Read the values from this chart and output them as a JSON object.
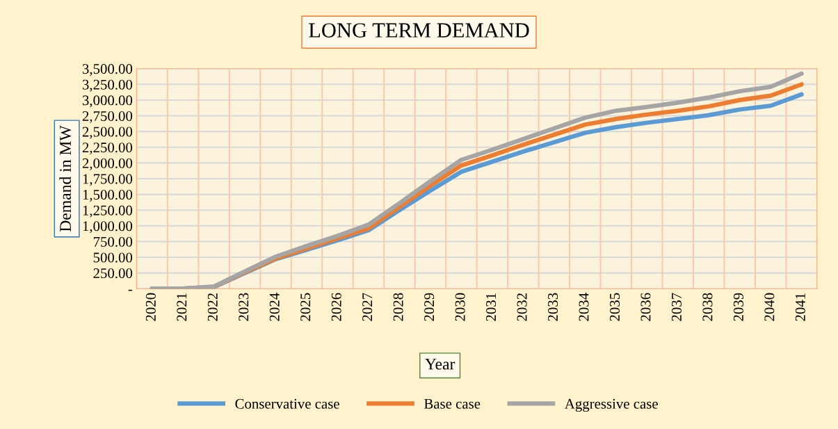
{
  "chart_data": {
    "type": "line",
    "title": "LONG TERM DEMAND",
    "xlabel": "Year",
    "ylabel": "Demand in MW",
    "categories": [
      "2020",
      "2021",
      "2022",
      "2023",
      "2024",
      "2025",
      "2026",
      "2027",
      "2028",
      "2029",
      "2030",
      "2031",
      "2032",
      "2033",
      "2034",
      "2035",
      "2036",
      "2037",
      "2038",
      "2039",
      "2040",
      "2041"
    ],
    "series": [
      {
        "name": "Conservative case",
        "color": "#5b9bd5",
        "values": [
          0,
          0,
          25,
          250,
          470,
          620,
          770,
          930,
          1250,
          1560,
          1860,
          2020,
          2180,
          2330,
          2480,
          2570,
          2640,
          2700,
          2760,
          2850,
          2910,
          3090
        ]
      },
      {
        "name": "Base case",
        "color": "#ed7d31",
        "values": [
          0,
          0,
          30,
          260,
          480,
          640,
          800,
          960,
          1300,
          1640,
          1960,
          2120,
          2290,
          2450,
          2610,
          2700,
          2770,
          2830,
          2900,
          3000,
          3070,
          3250
        ]
      },
      {
        "name": "Aggressive case",
        "color": "#a5a5a5",
        "values": [
          0,
          0,
          35,
          275,
          510,
          680,
          840,
          1020,
          1360,
          1710,
          2050,
          2210,
          2380,
          2550,
          2720,
          2830,
          2890,
          2960,
          3040,
          3140,
          3210,
          3420
        ]
      }
    ],
    "ylim": [
      0,
      3500
    ],
    "yticks": [
      {
        "value": 0,
        "label": "-"
      },
      {
        "value": 250,
        "label": "250.00"
      },
      {
        "value": 500,
        "label": "500.00"
      },
      {
        "value": 750,
        "label": "750.00"
      },
      {
        "value": 1000,
        "label": "1,000.00"
      },
      {
        "value": 1250,
        "label": "1,250.00"
      },
      {
        "value": 1500,
        "label": "1,500.00"
      },
      {
        "value": 1750,
        "label": "1,750.00"
      },
      {
        "value": 2000,
        "label": "2,000.00"
      },
      {
        "value": 2250,
        "label": "2,250.00"
      },
      {
        "value": 2500,
        "label": "2,500.00"
      },
      {
        "value": 2750,
        "label": "2,750.00"
      },
      {
        "value": 3000,
        "label": "3,000.00"
      },
      {
        "value": 3250,
        "label": "3,250.00"
      },
      {
        "value": 3500,
        "label": "3,500.00"
      }
    ],
    "grid": true,
    "legend": "bottom",
    "marker": "none",
    "line_style": "solid"
  }
}
